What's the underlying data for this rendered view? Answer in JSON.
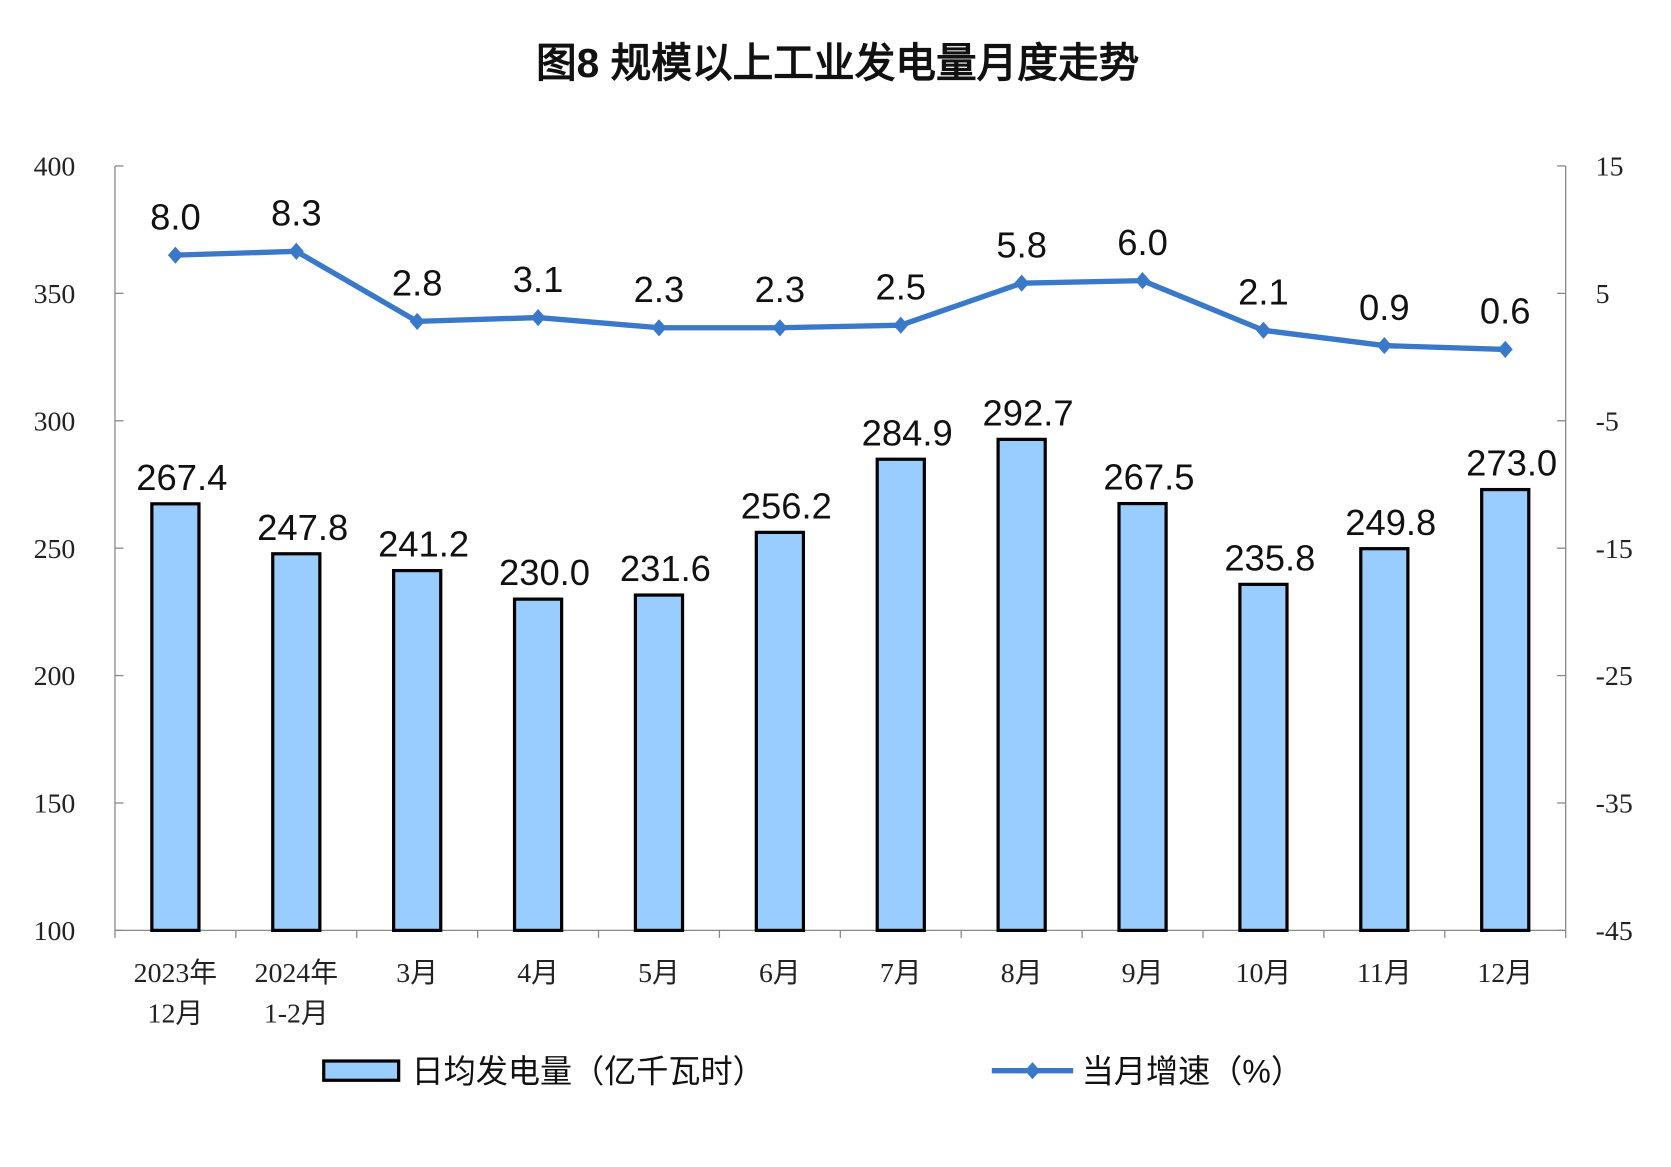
{
  "chart_data": {
    "type": "bar+line",
    "title": "图8  规模以上工业发电量月度走势",
    "categories": [
      [
        "2023年",
        "12月"
      ],
      [
        "2024年",
        "1-2月"
      ],
      [
        "3月"
      ],
      [
        "4月"
      ],
      [
        "5月"
      ],
      [
        "6月"
      ],
      [
        "7月"
      ],
      [
        "8月"
      ],
      [
        "9月"
      ],
      [
        "10月"
      ],
      [
        "11月"
      ],
      [
        "12月"
      ]
    ],
    "left_axis": {
      "range": [
        100,
        400
      ],
      "ticks": [
        "100",
        "150",
        "200",
        "250",
        "300",
        "350",
        "400"
      ]
    },
    "right_axis": {
      "range": [
        -45,
        15
      ],
      "ticks": [
        "-45",
        "-35",
        "-25",
        "-15",
        "-5",
        "5",
        "15"
      ]
    },
    "grid": false,
    "legend_position": "bottom",
    "series": [
      {
        "name": "日均发电量（亿千瓦时）",
        "type": "bar",
        "axis": "left",
        "color": "#99CCFF",
        "values": [
          267.4,
          247.8,
          241.2,
          230.0,
          231.6,
          256.2,
          284.9,
          292.7,
          267.5,
          235.8,
          249.8,
          273.0
        ],
        "labels": [
          "267.4",
          "247.8",
          "241.2",
          "230.0",
          "231.6",
          "256.2",
          "284.9",
          "292.7",
          "267.5",
          "235.8",
          "249.8",
          "273.0"
        ]
      },
      {
        "name": "当月增速（%）",
        "type": "line",
        "axis": "right",
        "color": "#3A78C9",
        "values": [
          8.0,
          8.3,
          2.8,
          3.1,
          2.3,
          2.3,
          2.5,
          5.8,
          6.0,
          2.1,
          0.9,
          0.6
        ],
        "labels": [
          "8.0",
          "8.3",
          "2.8",
          "3.1",
          "2.3",
          "2.3",
          "2.5",
          "5.8",
          "6.0",
          "2.1",
          "0.9",
          "0.6"
        ]
      }
    ]
  }
}
